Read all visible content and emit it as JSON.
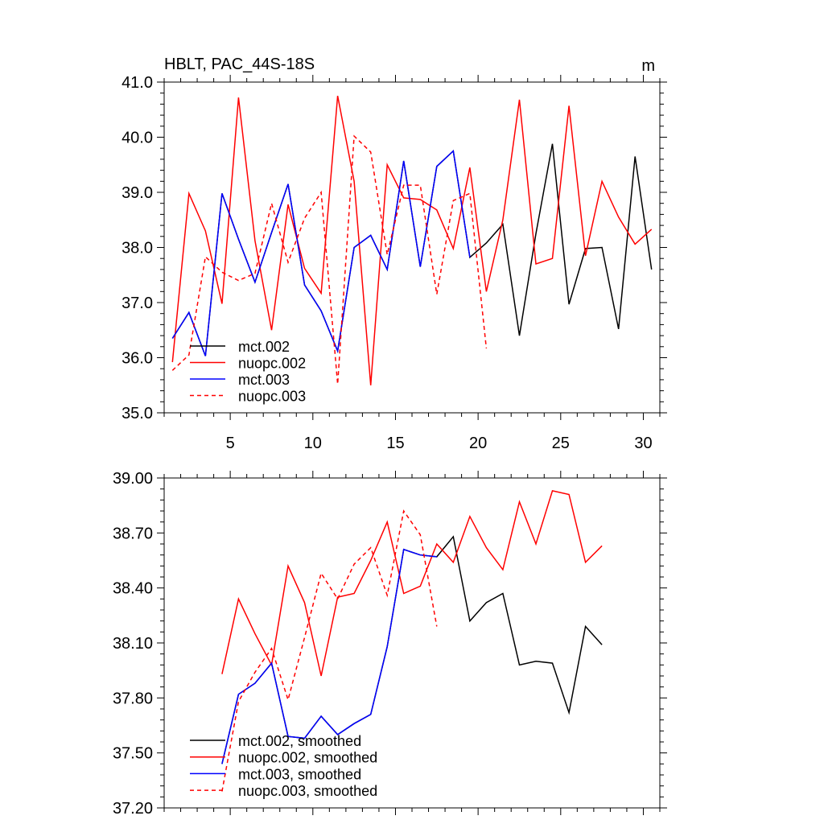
{
  "chart_data": [
    {
      "type": "line",
      "title": "HBLT, PAC_44S-18S",
      "units": "m",
      "xlabel": "",
      "ylabel": "",
      "xlim": [
        1,
        31
      ],
      "ylim": [
        35.0,
        41.0
      ],
      "xticks": [
        5,
        10,
        15,
        20,
        25,
        30
      ],
      "yticks": [
        35.0,
        36.0,
        37.0,
        38.0,
        39.0,
        40.0,
        41.0
      ],
      "ytick_labels": [
        "35.0",
        "36.0",
        "37.0",
        "38.0",
        "39.0",
        "40.0",
        "41.0"
      ],
      "legend_position": "lower-left",
      "series": [
        {
          "name": "mct.002",
          "color": "#000000",
          "dash": false,
          "x": [
            1.5,
            2.5,
            3.5,
            4.5,
            5.5,
            6.5,
            7.5,
            8.5,
            9.5,
            10.5,
            11.5,
            12.5,
            13.5,
            14.5,
            15.5,
            16.5,
            17.5,
            18.5,
            19.5,
            20.5,
            21.5,
            22.5,
            23.5,
            24.5,
            25.5,
            26.5,
            27.5,
            28.5,
            29.5,
            30.5
          ],
          "values": [
            36.35,
            36.82,
            36.03,
            38.98,
            38.15,
            37.37,
            38.27,
            39.15,
            37.32,
            36.85,
            36.12,
            38.0,
            38.22,
            37.6,
            39.57,
            37.65,
            39.47,
            39.75,
            37.82,
            38.08,
            38.42,
            36.4,
            38.25,
            39.88,
            36.97,
            37.98,
            38.0,
            36.52,
            39.65,
            37.6
          ]
        },
        {
          "name": "nuopc.002",
          "color": "#ff0000",
          "dash": false,
          "x": [
            1.5,
            2.5,
            3.5,
            4.5,
            5.5,
            6.5,
            7.5,
            8.5,
            9.5,
            10.5,
            11.5,
            12.5,
            13.5,
            14.5,
            15.5,
            16.5,
            17.5,
            18.5,
            19.5,
            20.5,
            21.5,
            22.5,
            23.5,
            24.5,
            25.5,
            26.5,
            27.5,
            28.5,
            29.5,
            30.5
          ],
          "values": [
            35.92,
            38.98,
            38.3,
            36.98,
            40.72,
            38.12,
            36.5,
            38.78,
            37.62,
            37.17,
            40.75,
            39.2,
            35.5,
            39.5,
            38.9,
            38.87,
            38.68,
            37.98,
            39.45,
            37.2,
            38.5,
            40.68,
            37.7,
            37.8,
            40.57,
            37.85,
            39.2,
            38.55,
            38.06,
            38.33
          ]
        },
        {
          "name": "mct.003",
          "color": "#0000ff",
          "dash": false,
          "x": [
            1.5,
            2.5,
            3.5,
            4.5,
            5.5,
            6.5,
            7.5,
            8.5,
            9.5,
            10.5,
            11.5,
            12.5,
            13.5,
            14.5,
            15.5,
            16.5,
            17.5,
            18.5,
            19.5
          ],
          "values": [
            36.35,
            36.82,
            36.03,
            38.98,
            38.15,
            37.37,
            38.27,
            39.15,
            37.32,
            36.85,
            36.12,
            38.0,
            38.22,
            37.6,
            39.57,
            37.65,
            39.47,
            39.75,
            37.82
          ]
        },
        {
          "name": "nuopc.003",
          "color": "#ff0000",
          "dash": true,
          "x": [
            1.5,
            2.5,
            3.5,
            4.5,
            5.5,
            6.5,
            7.5,
            8.5,
            9.5,
            10.5,
            11.5,
            12.5,
            13.5,
            14.5,
            15.5,
            16.5,
            17.5,
            18.5,
            19.5,
            20.5
          ],
          "values": [
            35.77,
            36.05,
            37.83,
            37.55,
            37.4,
            37.53,
            38.8,
            37.73,
            38.53,
            39.0,
            35.52,
            40.02,
            39.73,
            37.87,
            39.13,
            39.13,
            37.15,
            38.85,
            38.98,
            36.17
          ]
        }
      ]
    },
    {
      "type": "line",
      "title": "",
      "units": "",
      "xlabel": "",
      "ylabel": "",
      "xlim": [
        1,
        31
      ],
      "ylim": [
        37.2,
        39.0
      ],
      "xticks": [
        5,
        10,
        15,
        20,
        25,
        30
      ],
      "yticks": [
        37.2,
        37.5,
        37.8,
        38.1,
        38.4,
        38.7,
        39.0
      ],
      "ytick_labels": [
        "37.20",
        "37.50",
        "37.80",
        "38.10",
        "38.40",
        "38.70",
        "39.00"
      ],
      "legend_position": "lower-left",
      "series": [
        {
          "name": "mct.002, smoothed",
          "color": "#000000",
          "dash": false,
          "x": [
            4.5,
            5.5,
            6.5,
            7.5,
            8.5,
            9.5,
            10.5,
            11.5,
            12.5,
            13.5,
            14.5,
            15.5,
            16.5,
            17.5,
            18.5,
            19.5,
            20.5,
            21.5,
            22.5,
            23.5,
            24.5,
            25.5,
            26.5,
            27.5
          ],
          "values": [
            37.44,
            37.82,
            37.88,
            37.99,
            37.59,
            37.58,
            37.7,
            37.6,
            37.66,
            37.71,
            38.08,
            38.61,
            38.58,
            38.57,
            38.68,
            38.22,
            38.32,
            38.37,
            37.98,
            38.0,
            37.99,
            37.72,
            38.19,
            38.09
          ]
        },
        {
          "name": "nuopc.002, smoothed",
          "color": "#ff0000",
          "dash": false,
          "x": [
            4.5,
            5.5,
            6.5,
            7.5,
            8.5,
            9.5,
            10.5,
            11.5,
            12.5,
            13.5,
            14.5,
            15.5,
            16.5,
            17.5,
            18.5,
            19.5,
            20.5,
            21.5,
            22.5,
            23.5,
            24.5,
            25.5,
            26.5,
            27.5
          ],
          "values": [
            37.93,
            38.34,
            38.15,
            37.98,
            38.52,
            38.32,
            37.92,
            38.35,
            38.37,
            38.55,
            38.76,
            38.37,
            38.41,
            38.64,
            38.54,
            38.79,
            38.62,
            38.5,
            38.87,
            38.64,
            38.93,
            38.91,
            38.54,
            38.63
          ]
        },
        {
          "name": "mct.003, smoothed",
          "color": "#0000ff",
          "dash": false,
          "x": [
            4.5,
            5.5,
            6.5,
            7.5,
            8.5,
            9.5,
            10.5,
            11.5,
            12.5,
            13.5,
            14.5,
            15.5,
            16.5,
            17.5
          ],
          "values": [
            37.44,
            37.82,
            37.88,
            37.99,
            37.59,
            37.58,
            37.7,
            37.6,
            37.66,
            37.71,
            38.08,
            38.61,
            38.58,
            38.57
          ]
        },
        {
          "name": "nuopc.003, smoothed",
          "color": "#ff0000",
          "dash": true,
          "x": [
            4.5,
            5.5,
            6.5,
            7.5,
            8.5,
            9.5,
            10.5,
            11.5,
            12.5,
            13.5,
            14.5,
            15.5,
            16.5,
            17.5
          ],
          "values": [
            37.29,
            37.78,
            37.94,
            38.07,
            37.79,
            38.13,
            38.48,
            38.34,
            38.53,
            38.62,
            38.36,
            38.82,
            38.69,
            38.19
          ]
        }
      ]
    }
  ]
}
